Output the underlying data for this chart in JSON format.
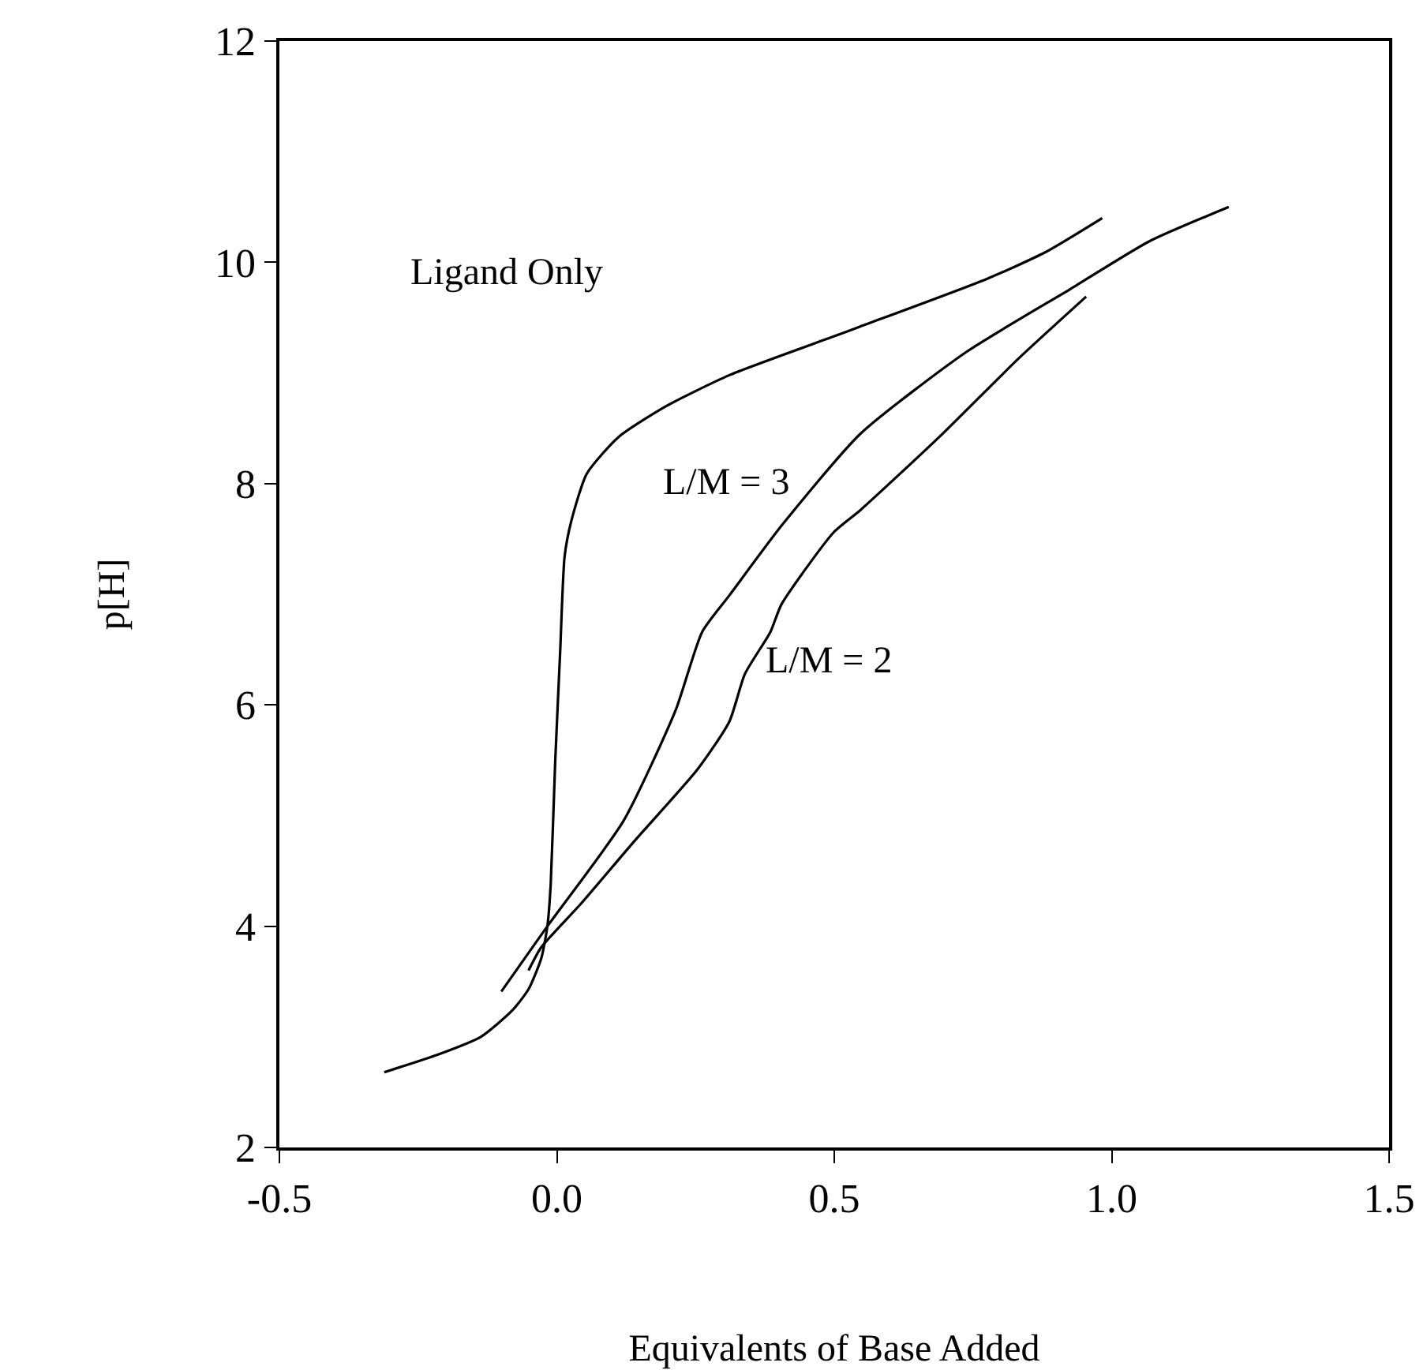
{
  "chart_data": {
    "type": "line",
    "xlabel": "Equivalents of Base Added",
    "ylabel": "p[H]",
    "xlim": [
      -0.5,
      1.5
    ],
    "xticks": [
      {
        "value": -0.5,
        "label": "-0.5"
      },
      {
        "value": 0,
        "label": "0.0"
      },
      0.5,
      {
        "value": 1,
        "label": "1.0"
      },
      1.5
    ],
    "ylim": [
      2,
      12
    ],
    "yticks": [
      2,
      4,
      6,
      8,
      10,
      12
    ],
    "marker": "none",
    "line_style": "solid",
    "series": [
      {
        "color": "#000000",
        "x": [
          -0.311,
          -0.214,
          -0.137,
          -0.08,
          -0.051,
          -0.028,
          -0.017,
          -0.011,
          -0.003,
          0.006,
          0.014,
          0.026,
          0.054,
          0.111,
          0.197,
          0.311,
          0.499,
          0.547,
          0.775,
          0.88,
          0.983
        ],
        "values": [
          2.68,
          2.84,
          3.0,
          3.24,
          3.43,
          3.71,
          4.0,
          4.38,
          5.48,
          6.48,
          7.34,
          7.66,
          8.09,
          8.42,
          8.7,
          8.98,
          9.33,
          9.42,
          9.85,
          10.09,
          10.4
        ]
      },
      {
        "color": "#000000",
        "x": [
          -0.1,
          -0.017,
          0.12,
          0.214,
          0.262,
          0.311,
          0.405,
          0.547,
          0.738,
          0.926,
          1.068,
          1.211
        ],
        "values": [
          3.41,
          4.0,
          4.95,
          5.95,
          6.66,
          6.99,
          7.62,
          8.45,
          9.19,
          9.76,
          10.19,
          10.5
        ]
      },
      {
        "color": "#000000",
        "x": [
          -0.051,
          -0.028,
          0.043,
          0.14,
          0.254,
          0.311,
          0.339,
          0.385,
          0.405,
          0.499,
          0.547,
          0.689,
          0.832,
          0.954
        ],
        "values": [
          3.6,
          3.81,
          4.2,
          4.77,
          5.42,
          5.85,
          6.28,
          6.66,
          6.91,
          7.56,
          7.76,
          8.42,
          9.13,
          9.69
        ]
      }
    ],
    "annotations": [
      "Ligand Only",
      "L/M = 3",
      "L/M = 2"
    ]
  }
}
